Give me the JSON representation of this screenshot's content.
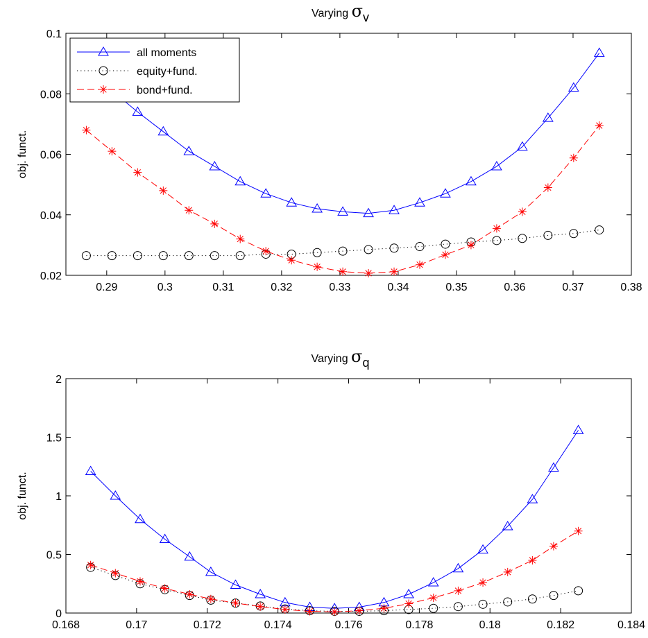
{
  "chart_data": [
    {
      "type": "line",
      "title": "Varying",
      "title_symbol": "σ",
      "title_sub": "v",
      "ylabel": "obj. funct.",
      "xlim": [
        0.283,
        0.38
      ],
      "ylim": [
        0.02,
        0.1
      ],
      "xticks": [
        0.29,
        0.3,
        0.31,
        0.32,
        0.33,
        0.34,
        0.35,
        0.36,
        0.37,
        0.38
      ],
      "xtick_labels": [
        "0.29",
        "0.3",
        "0.31",
        "0.32",
        "0.33",
        "0.34",
        "0.35",
        "0.36",
        "0.37",
        "0.38"
      ],
      "yticks": [
        0.02,
        0.04,
        0.06,
        0.08,
        0.1
      ],
      "ytick_labels": [
        "0.02",
        "0.04",
        "0.06",
        "0.08",
        "0.1"
      ],
      "legend": "top-left",
      "grid": false,
      "x": [
        0.2865,
        0.2909,
        0.2953,
        0.2997,
        0.3041,
        0.3085,
        0.3129,
        0.3173,
        0.3217,
        0.3261,
        0.3305,
        0.3349,
        0.3393,
        0.3437,
        0.3481,
        0.3525,
        0.3569,
        0.3613,
        0.3657,
        0.3701,
        0.3745
      ],
      "series": [
        {
          "name": "all moments",
          "color": "#0000ff",
          "marker": "triangle",
          "line": "solid",
          "values": [
            0.088,
            0.081,
            0.074,
            0.0675,
            0.061,
            0.056,
            0.051,
            0.047,
            0.044,
            0.042,
            0.041,
            0.0405,
            0.0415,
            0.044,
            0.047,
            0.051,
            0.056,
            0.0625,
            0.072,
            0.082,
            0.0935
          ]
        },
        {
          "name": "equity+fund.",
          "color": "#000000",
          "marker": "circle",
          "line": "dotted",
          "values": [
            0.0265,
            0.0265,
            0.0265,
            0.0265,
            0.0265,
            0.0265,
            0.0265,
            0.027,
            0.027,
            0.0275,
            0.028,
            0.0285,
            0.029,
            0.0295,
            0.0303,
            0.031,
            0.0315,
            0.0322,
            0.0332,
            0.0338,
            0.035
          ]
        },
        {
          "name": "bond+fund.",
          "color": "#ff0000",
          "marker": "star",
          "line": "dashed",
          "values": [
            0.068,
            0.061,
            0.054,
            0.048,
            0.0415,
            0.037,
            0.032,
            0.028,
            0.025,
            0.0228,
            0.0212,
            0.0207,
            0.0212,
            0.0235,
            0.0268,
            0.03,
            0.0355,
            0.041,
            0.049,
            0.0588,
            0.0695
          ]
        }
      ]
    },
    {
      "type": "line",
      "title": "Varying",
      "title_symbol": "σ",
      "title_sub": "q",
      "ylabel": "obj. funct.",
      "xlim": [
        0.168,
        0.184
      ],
      "ylim": [
        0,
        2
      ],
      "xticks": [
        0.168,
        0.17,
        0.172,
        0.174,
        0.176,
        0.178,
        0.18,
        0.182,
        0.184
      ],
      "xtick_labels": [
        "0.168",
        "0.17",
        "0.172",
        "0.174",
        "0.176",
        "0.178",
        "0.18",
        "0.182",
        "0.184"
      ],
      "yticks": [
        0,
        0.5,
        1,
        1.5,
        2
      ],
      "ytick_labels": [
        "0",
        "0.5",
        "1",
        "1.5",
        "2"
      ],
      "grid": false,
      "x": [
        0.1687,
        0.1694,
        0.1701,
        0.1708,
        0.1715,
        0.1721,
        0.1728,
        0.1735,
        0.1742,
        0.1749,
        0.1756,
        0.1763,
        0.177,
        0.1777,
        0.1784,
        0.1791,
        0.1798,
        0.1805,
        0.1812,
        0.1818,
        0.1825
      ],
      "series": [
        {
          "name": "all moments",
          "color": "#0000ff",
          "marker": "triangle",
          "line": "solid",
          "values": [
            1.21,
            1.0,
            0.8,
            0.63,
            0.48,
            0.35,
            0.24,
            0.16,
            0.09,
            0.05,
            0.04,
            0.05,
            0.09,
            0.16,
            0.26,
            0.38,
            0.54,
            0.74,
            0.97,
            1.24,
            1.56
          ]
        },
        {
          "name": "equity+fund.",
          "color": "#000000",
          "marker": "circle",
          "line": "dotted",
          "values": [
            0.39,
            0.32,
            0.25,
            0.2,
            0.15,
            0.11,
            0.085,
            0.06,
            0.035,
            0.02,
            0.015,
            0.015,
            0.02,
            0.03,
            0.04,
            0.055,
            0.075,
            0.095,
            0.12,
            0.15,
            0.19
          ]
        },
        {
          "name": "bond+fund.",
          "color": "#ff0000",
          "marker": "star",
          "line": "dashed",
          "values": [
            0.41,
            0.34,
            0.27,
            0.21,
            0.16,
            0.12,
            0.085,
            0.055,
            0.03,
            0.015,
            0.01,
            0.02,
            0.04,
            0.08,
            0.13,
            0.19,
            0.26,
            0.35,
            0.45,
            0.57,
            0.7
          ]
        }
      ]
    }
  ]
}
